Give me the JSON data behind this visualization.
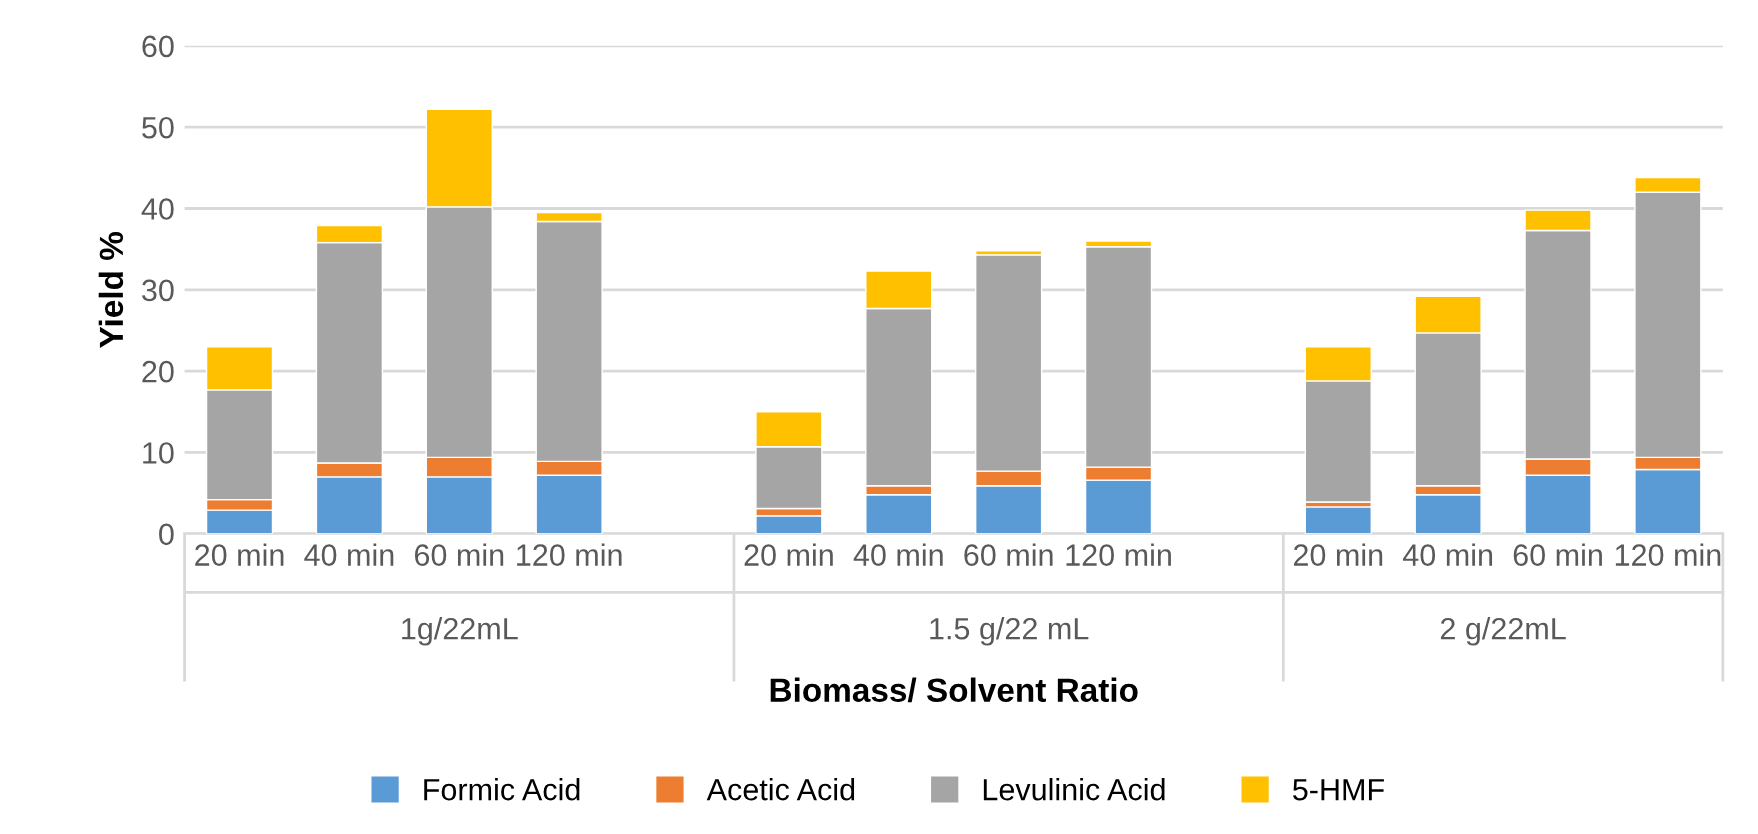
{
  "chart_data": {
    "type": "bar",
    "stacked": true,
    "xlabel": "Biomass/ Solvent Ratio",
    "ylabel": "Yield %",
    "categories": [
      "20 min",
      "40 min",
      "60 min",
      "120 min",
      null,
      "20 min",
      "40 min",
      "60 min",
      "120 min",
      null,
      "20 min",
      "40 min",
      "60 min",
      "120 min"
    ],
    "series": [
      {
        "name": "Formic Acid",
        "color": "#5b9bd5",
        "values": [
          2.9,
          7.0,
          7.0,
          7.2,
          null,
          2.2,
          4.8,
          5.9,
          6.6,
          null,
          3.3,
          4.8,
          7.2,
          7.9
        ]
      },
      {
        "name": "Acetic Acid",
        "color": "#ed7d31",
        "values": [
          1.3,
          1.7,
          2.4,
          1.7,
          null,
          0.9,
          1.1,
          1.8,
          1.6,
          null,
          0.6,
          1.1,
          2.0,
          1.5
        ]
      },
      {
        "name": "Levulinic Acid",
        "color": "#a5a5a5",
        "values": [
          13.5,
          27.1,
          30.8,
          29.5,
          null,
          7.6,
          21.8,
          26.6,
          27.1,
          null,
          14.9,
          18.8,
          28.1,
          32.6
        ]
      },
      {
        "name": "5-HMF",
        "color": "#ffc000",
        "values": [
          5.3,
          2.1,
          12.0,
          1.1,
          null,
          4.3,
          4.6,
          0.5,
          0.7,
          null,
          4.2,
          4.5,
          2.5,
          1.8
        ]
      }
    ],
    "annotations": [
      "1g/22mL",
      "1.5 g/22 mL",
      "2 g/22mL"
    ],
    "ylim": [
      0,
      60
    ],
    "yticks": [
      0,
      10,
      20,
      30,
      40,
      50,
      60
    ],
    "grid": "y",
    "legend": "bottom"
  }
}
